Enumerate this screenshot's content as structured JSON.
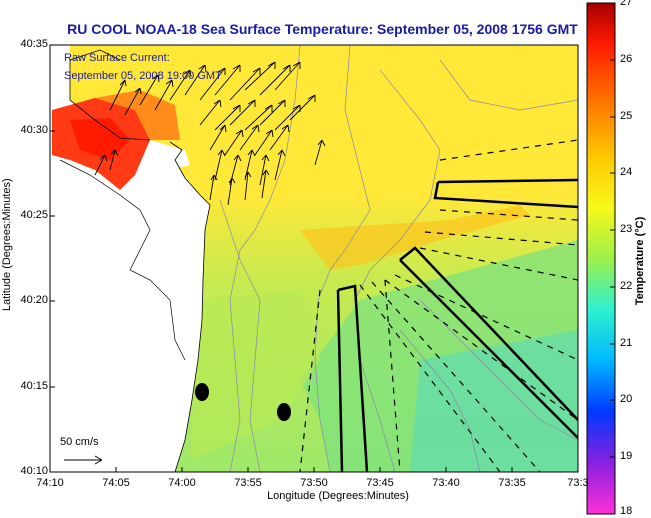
{
  "title": "RU COOL  NOAA-18  Sea Surface Temperature:  September 05, 2008 1756 GMT",
  "legend": {
    "line1": "Raw Surface Current:",
    "line2": "September 05, 2008 19:00 GMT"
  },
  "scale_label": "50 cm/s",
  "axes": {
    "xlabel": "Longitude (Degrees:Minutes)",
    "ylabel": "Latitude (Degrees:Minutes)",
    "xticks": [
      "74:10",
      "74:05",
      "74:00",
      "73:55",
      "73:50",
      "73:45",
      "73:40",
      "73:35",
      "73:3"
    ],
    "yticks": [
      "40:35",
      "40:30",
      "40:25",
      "40:20",
      "40:15",
      "40:10"
    ]
  },
  "colorbar": {
    "label": "Temperature (°C)",
    "ticks": [
      "27",
      "26",
      "25",
      "24",
      "23",
      "22",
      "21",
      "20",
      "19",
      "18"
    ],
    "min": 18,
    "max": 27
  }
}
